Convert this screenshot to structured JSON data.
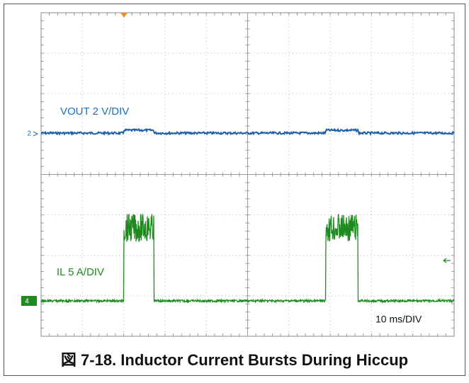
{
  "scope": {
    "channel_labels": {
      "vout": "VOUT 2 V/DIV",
      "il": "IL 5 A/DIV"
    },
    "timebase": "10 ms/DIV",
    "markers": {
      "ch2": "2",
      "ch4": "4"
    }
  },
  "caption": "図 7-18. Inductor Current Bursts During Hiccup"
}
